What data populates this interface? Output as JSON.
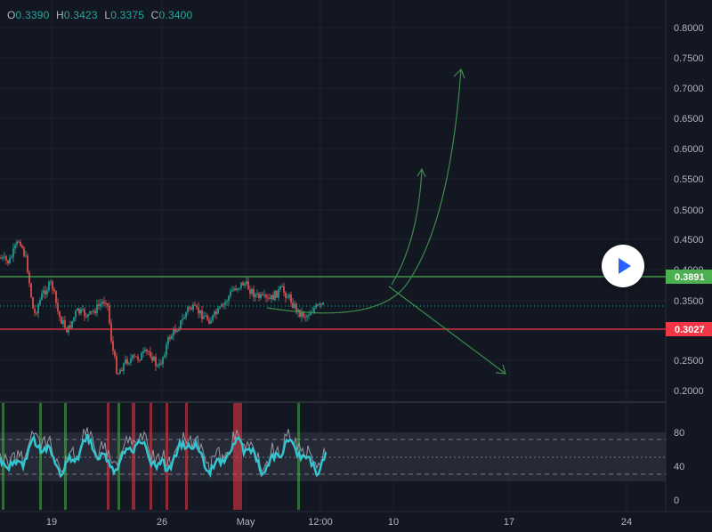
{
  "ohlc": {
    "open_label": "O",
    "open": "0.3390",
    "high_label": "H",
    "high": "0.3423",
    "low_label": "L",
    "low": "0.3375",
    "close_label": "C",
    "close": "0.3400"
  },
  "price_axis": {
    "ticks": [
      "0.8000",
      "0.7500",
      "0.7000",
      "0.6500",
      "0.6000",
      "0.5500",
      "0.5000",
      "0.4500",
      "0.4000",
      "0.3500",
      "0.2500",
      "0.2000"
    ]
  },
  "price_tags": {
    "resistance": "0.3891",
    "support": "0.3027",
    "resistance_color": "#4caf50",
    "support_color": "#f23645"
  },
  "oscillator_axis": {
    "ticks": [
      "80",
      "40",
      "0"
    ]
  },
  "time_axis": {
    "labels": [
      "19",
      "26",
      "May",
      "12:00",
      "10",
      "17",
      "24"
    ]
  },
  "colors": {
    "up": "#26a69a",
    "down": "#ef5350",
    "osc_line": "#32c5cf",
    "drawing": "#3d8b4a"
  },
  "play_button": {
    "icon": "play-icon"
  }
}
